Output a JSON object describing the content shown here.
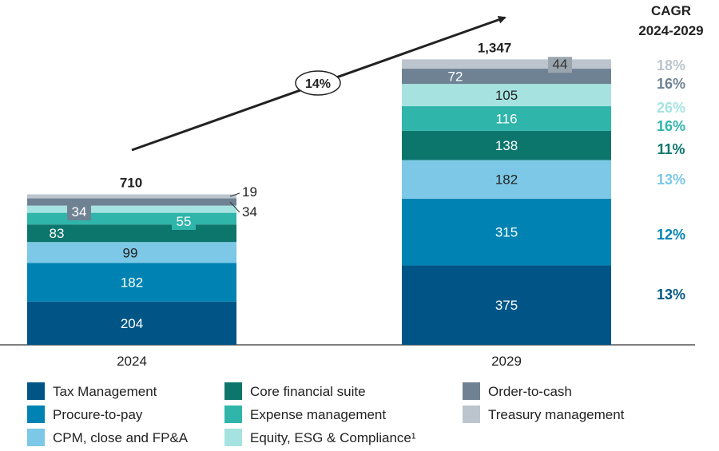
{
  "chart_data": {
    "type": "bar",
    "stacked": true,
    "categories": [
      "2024",
      "2029"
    ],
    "totals": [
      "710",
      "1,347"
    ],
    "series": [
      {
        "name": "Tax Management",
        "values": [
          204,
          375
        ],
        "color": "#005587",
        "label_color": "#ffffff",
        "cagr": "13%"
      },
      {
        "name": "Procure-to-pay",
        "values": [
          182,
          315
        ],
        "color": "#0083b3",
        "label_color": "#ffffff",
        "cagr": "12%"
      },
      {
        "name": "CPM, close and FP&A",
        "values": [
          99,
          182
        ],
        "color": "#7cc8e6",
        "label_color": "#222222",
        "cagr": "13%"
      },
      {
        "name": "Core financial suite",
        "values": [
          83,
          138
        ],
        "color": "#0c766c",
        "label_color": "#ffffff",
        "cagr": "11%"
      },
      {
        "name": "Expense management",
        "values": [
          55,
          116
        ],
        "color": "#2fb5aa",
        "label_color": "#ffffff",
        "cagr": "16%"
      },
      {
        "name": "Equity, ESG & Compliance¹",
        "values": [
          34,
          105
        ],
        "color": "#a6e3e0",
        "label_color": "#222222",
        "cagr": "26%"
      },
      {
        "name": "Order-to-cash",
        "values": [
          34,
          72
        ],
        "color": "#6e8293",
        "label_color": "#ffffff",
        "cagr": "16%"
      },
      {
        "name": "Treasury management",
        "values": [
          19,
          44
        ],
        "color": "#bcc5cd",
        "label_color": "#333333",
        "cagr": "18%"
      }
    ],
    "growth_label": "14%",
    "cagr_title": [
      "CAGR",
      "2024-2029"
    ],
    "cagr_colors": [
      "#005587",
      "#0083b3",
      "#7cc8e6",
      "#0c766c",
      "#2fb5aa",
      "#a6e3e0",
      "#6e8293",
      "#bcc5cd"
    ]
  }
}
